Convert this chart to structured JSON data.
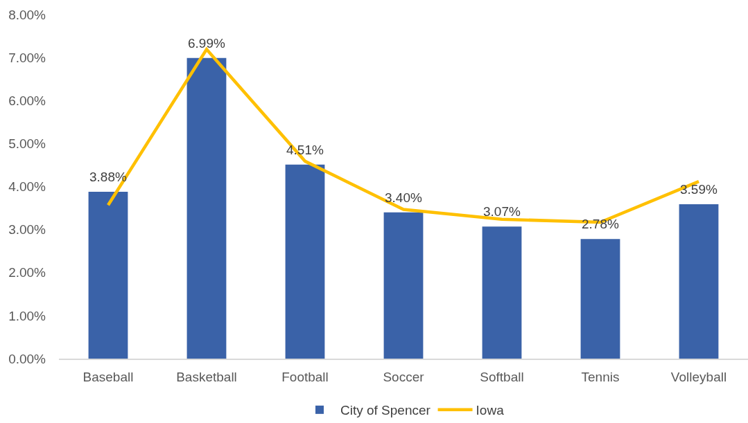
{
  "chart_data": {
    "type": "bar",
    "categories": [
      "Baseball",
      "Basketball",
      "Football",
      "Soccer",
      "Softball",
      "Tennis",
      "Volleyball"
    ],
    "series": [
      {
        "name": "City of Spencer",
        "color": "#3a62a8",
        "values": [
          3.88,
          6.99,
          4.51,
          3.4,
          3.07,
          2.78,
          3.59
        ],
        "value_labels": [
          "3.88%",
          "6.99%",
          "4.51%",
          "3.40%",
          "3.07%",
          "2.78%",
          "3.59%"
        ]
      },
      {
        "name": "Iowa",
        "type": "line",
        "color": "#ffc000",
        "values": [
          3.57,
          7.19,
          4.59,
          3.47,
          3.24,
          3.17,
          4.12
        ]
      }
    ],
    "ylim": [
      0,
      8
    ],
    "yticks": [
      {
        "value": 0,
        "label": "0.00%"
      },
      {
        "value": 1,
        "label": "1.00%"
      },
      {
        "value": 2,
        "label": "2.00%"
      },
      {
        "value": 3,
        "label": "3.00%"
      },
      {
        "value": 4,
        "label": "4.00%"
      },
      {
        "value": 5,
        "label": "5.00%"
      },
      {
        "value": 6,
        "label": "6.00%"
      },
      {
        "value": 7,
        "label": "7.00%"
      },
      {
        "value": 8,
        "label": "8.00%"
      }
    ],
    "legend": "bottom"
  }
}
